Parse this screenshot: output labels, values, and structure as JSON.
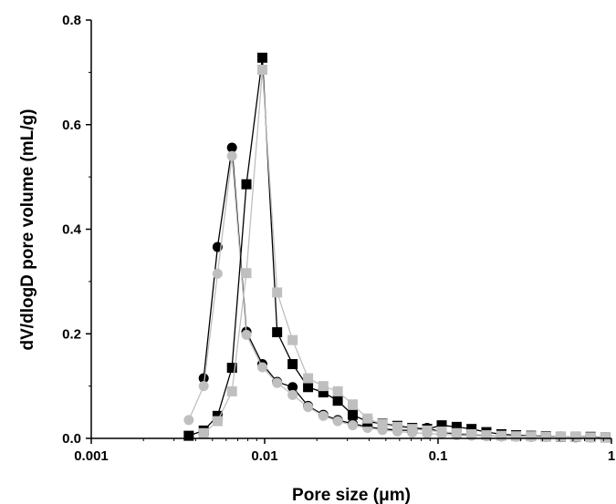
{
  "chart_data": {
    "type": "scatter",
    "title": "",
    "xlabel": "Pore size (μm)",
    "ylabel": "dV/dlogD pore volume (mL/g)",
    "x_scale": "log",
    "xlim": [
      0.001,
      1
    ],
    "ylim": [
      0,
      0.8
    ],
    "x_ticks": [
      {
        "value": 0.001,
        "label": "0.001"
      },
      {
        "value": 0.01,
        "label": "0.01"
      },
      {
        "value": 0.1,
        "label": "0.1"
      },
      {
        "value": 1,
        "label": "1"
      }
    ],
    "y_ticks": [
      {
        "value": 0,
        "label": "0.0"
      },
      {
        "value": 0.2,
        "label": "0.2"
      },
      {
        "value": 0.4,
        "label": "0.4"
      },
      {
        "value": 0.6,
        "label": "0.6"
      },
      {
        "value": 0.8,
        "label": "0.8"
      }
    ],
    "grid": false,
    "legend": "none",
    "series": [
      {
        "marker": "circle",
        "color": "#000000",
        "line_color": "#000000",
        "x": [
          0.00445,
          0.00535,
          0.00648,
          0.00785,
          0.0097,
          0.0118,
          0.0145,
          0.0178,
          0.0218,
          0.0264,
          0.0322,
          0.0392,
          0.0478,
          0.0583,
          0.071,
          0.0865,
          0.105,
          0.128,
          0.156,
          0.19,
          0.232,
          0.282,
          0.344,
          0.419,
          0.51,
          0.622,
          0.758,
          0.923
        ],
        "y": [
          0.115,
          0.366,
          0.556,
          0.204,
          0.142,
          0.108,
          0.098,
          0.062,
          0.045,
          0.035,
          0.028,
          0.022,
          0.018,
          0.016,
          0.015,
          0.02,
          0.012,
          0.008,
          0.006,
          0.005,
          0.004,
          0.004,
          0.003,
          0.003,
          0.003,
          0.002,
          0.002,
          0.002
        ]
      },
      {
        "marker": "circle",
        "color": "#bfbfbf",
        "line_color": "#bfbfbf",
        "x": [
          0.00365,
          0.00445,
          0.00535,
          0.00648,
          0.00785,
          0.0097,
          0.0118,
          0.0145,
          0.0178,
          0.0218,
          0.0264,
          0.0322,
          0.0392,
          0.0478,
          0.0583,
          0.071,
          0.0865,
          0.105,
          0.128,
          0.156,
          0.19,
          0.232,
          0.282,
          0.344,
          0.419,
          0.51,
          0.622,
          0.758,
          0.923
        ],
        "y": [
          0.035,
          0.1,
          0.315,
          0.54,
          0.198,
          0.136,
          0.106,
          0.083,
          0.06,
          0.043,
          0.033,
          0.025,
          0.02,
          0.016,
          0.013,
          0.011,
          0.009,
          0.008,
          0.006,
          0.005,
          0.004,
          0.004,
          0.003,
          0.003,
          0.003,
          0.002,
          0.002,
          0.002,
          0.002
        ]
      },
      {
        "marker": "square",
        "color": "#000000",
        "line_color": "#000000",
        "x": [
          0.00365,
          0.00445,
          0.00535,
          0.00648,
          0.00785,
          0.0097,
          0.0118,
          0.0145,
          0.0178,
          0.0218,
          0.0264,
          0.0322,
          0.0392,
          0.0478,
          0.0583,
          0.071,
          0.0865,
          0.105,
          0.128,
          0.156,
          0.19,
          0.232,
          0.282,
          0.344,
          0.419,
          0.51,
          0.622,
          0.758,
          0.923
        ],
        "y": [
          0.005,
          0.015,
          0.043,
          0.135,
          0.486,
          0.728,
          0.203,
          0.142,
          0.098,
          0.088,
          0.072,
          0.045,
          0.032,
          0.028,
          0.024,
          0.02,
          0.018,
          0.025,
          0.022,
          0.018,
          0.012,
          0.008,
          0.006,
          0.005,
          0.004,
          0.003,
          0.003,
          0.003,
          0.002
        ]
      },
      {
        "marker": "square",
        "color": "#bfbfbf",
        "line_color": "#bfbfbf",
        "x": [
          0.00445,
          0.00535,
          0.00648,
          0.00785,
          0.0097,
          0.0118,
          0.0145,
          0.0178,
          0.0218,
          0.0264,
          0.0322,
          0.0392,
          0.0478,
          0.0583,
          0.071,
          0.0865,
          0.105,
          0.128,
          0.156,
          0.19,
          0.232,
          0.282,
          0.344,
          0.419,
          0.51,
          0.622,
          0.758,
          0.923
        ],
        "y": [
          0.01,
          0.033,
          0.09,
          0.316,
          0.705,
          0.279,
          0.188,
          0.115,
          0.1,
          0.09,
          0.065,
          0.038,
          0.027,
          0.022,
          0.018,
          0.015,
          0.013,
          0.01,
          0.008,
          0.006,
          0.005,
          0.004,
          0.004,
          0.003,
          0.003,
          0.003,
          0.002,
          0.002
        ]
      }
    ]
  }
}
